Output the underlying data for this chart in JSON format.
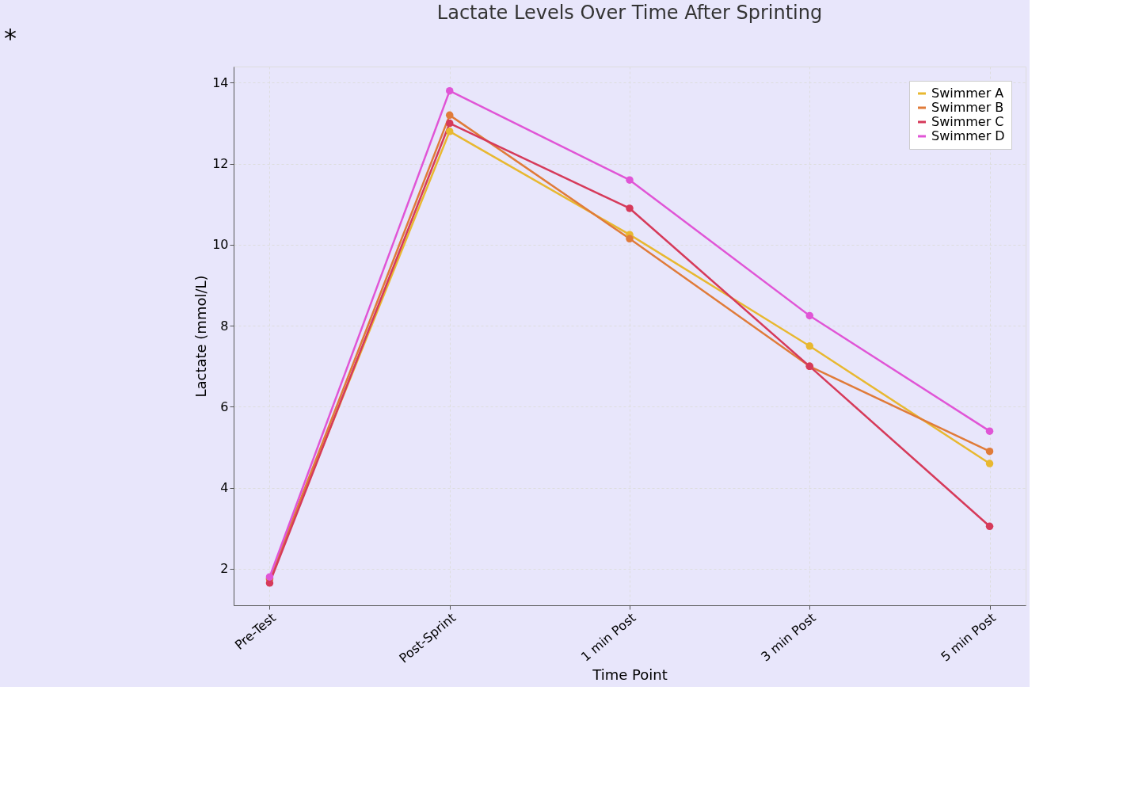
{
  "chart_data": {
    "type": "line",
    "title": "Lactate Levels Over Time After Sprinting",
    "xlabel": "Time Point",
    "ylabel": "Lactate (mmol/L)",
    "categories": [
      "Pre-Test",
      "Post-Sprint",
      "1 min Post",
      "3 min Post",
      "5 min Post"
    ],
    "series": [
      {
        "name": "Swimmer A",
        "color": "#e8b830",
        "values": [
          1.75,
          12.8,
          10.25,
          7.5,
          4.6
        ]
      },
      {
        "name": "Swimmer B",
        "color": "#e07b39",
        "values": [
          1.75,
          13.2,
          10.15,
          7.0,
          4.9
        ]
      },
      {
        "name": "Swimmer C",
        "color": "#d63a5a",
        "values": [
          1.65,
          13.0,
          10.9,
          7.0,
          3.05
        ]
      },
      {
        "name": "Swimmer D",
        "color": "#e055d6",
        "values": [
          1.8,
          13.8,
          11.6,
          8.25,
          5.4
        ]
      }
    ],
    "ylim": [
      1.1,
      14.4
    ],
    "yticks": [
      2,
      4,
      6,
      8,
      10,
      12,
      14
    ],
    "grid": true,
    "legend": "top right",
    "marker": "circle",
    "line_style": "solid",
    "annotations": [
      "*"
    ]
  }
}
